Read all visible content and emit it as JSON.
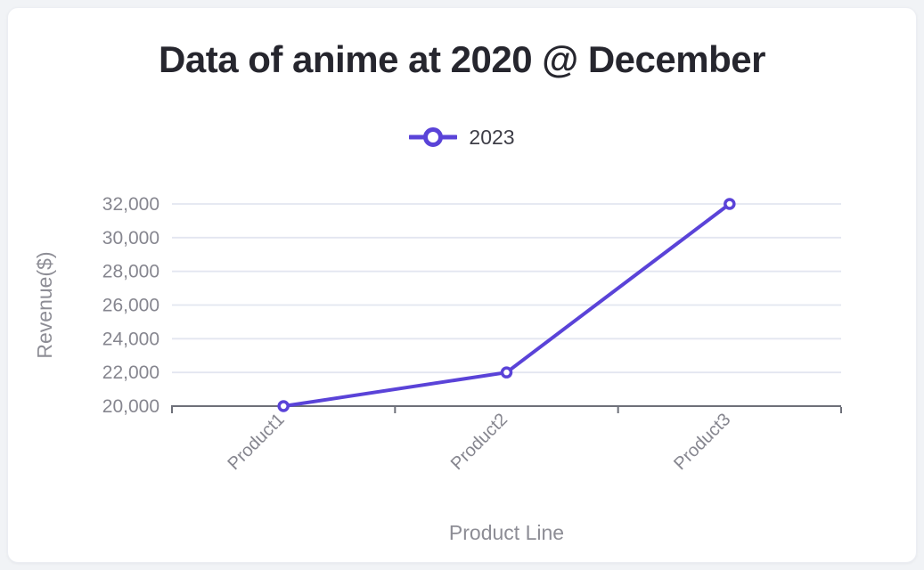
{
  "page": {
    "background_color": "#F1F3F6"
  },
  "card": {
    "background_color": "#FFFFFF"
  },
  "legend": {
    "position": "top-center",
    "items": [
      {
        "label": "2023",
        "color": "#5A43D8"
      }
    ]
  },
  "chart_data": {
    "type": "line",
    "title": "Data of anime at 2020 @ December",
    "categories": [
      "Product1",
      "Product2",
      "Product3"
    ],
    "series": [
      {
        "name": "2023",
        "values": [
          20000,
          22000,
          32000
        ],
        "color": "#5A43D8"
      }
    ],
    "xlabel": "Product Line",
    "ylabel": "Revenue($)",
    "ylim": [
      20000,
      32000
    ],
    "ytick_step": 2000,
    "ytick_labels": [
      "20,000",
      "22,000",
      "24,000",
      "26,000",
      "28,000",
      "30,000",
      "32,000"
    ],
    "grid": true,
    "legend_position": "top-center",
    "x_label_rotation": -45,
    "marker_style": "open-circle",
    "colors": {
      "line": "#5A43D8",
      "marker_fill": "#FFFFFF",
      "grid_line": "#E3E6F0",
      "axis_line": "#6E7079",
      "tick_label": "#86868F",
      "axis_title": "#8D8D95",
      "title_text": "#26262E",
      "legend_text": "#3E3E47"
    }
  }
}
